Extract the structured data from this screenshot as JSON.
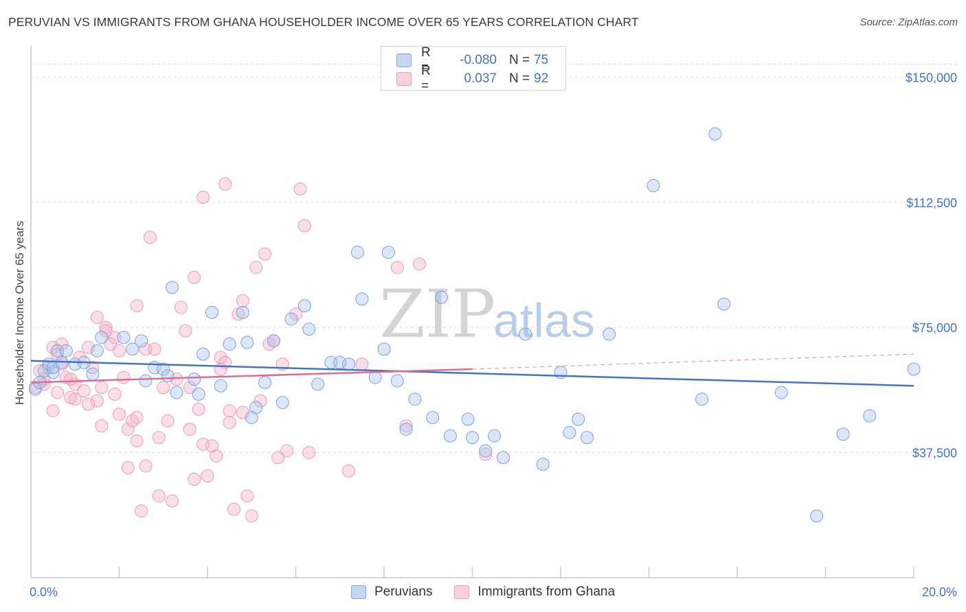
{
  "header": {
    "title": "PERUVIAN VS IMMIGRANTS FROM GHANA HOUSEHOLDER INCOME OVER 65 YEARS CORRELATION CHART",
    "source": "Source: ZipAtlas.com"
  },
  "watermark": {
    "zip": "ZIP",
    "atlas": "atlas"
  },
  "legend": {
    "rows": [
      {
        "r_label": "R =",
        "r_value": "-0.080",
        "n_label": "N =",
        "n_value": "75",
        "color": "#a9c6f0"
      },
      {
        "r_label": "R =",
        "r_value": "0.037",
        "n_label": "N =",
        "n_value": "92",
        "color": "#f5b8cc"
      }
    ]
  },
  "bottom_legend": [
    {
      "label": "Peruvians",
      "color": "#a9c6f0"
    },
    {
      "label": "Immigrants from Ghana",
      "color": "#f5b8cc"
    }
  ],
  "chart_data": {
    "type": "scatter",
    "title": "PERUVIAN VS IMMIGRANTS FROM GHANA HOUSEHOLDER INCOME OVER 65 YEARS CORRELATION CHART",
    "xlabel": "",
    "ylabel": "Householder Income Over 65 years",
    "xlim": [
      0,
      20
    ],
    "ylim": [
      0,
      157500
    ],
    "x_tick_labels": [
      "0.0%",
      "20.0%"
    ],
    "y_ticks": [
      37500,
      75000,
      112500,
      150000
    ],
    "y_tick_labels": [
      "$37,500",
      "$75,000",
      "$112,500",
      "$150,000"
    ],
    "grid": true,
    "legend_position": "top-center",
    "colors": {
      "peruvians": "#3f74c9",
      "ghana": "#e06b93"
    },
    "series": [
      {
        "name": "Peruvians",
        "trend": {
          "x0": 0,
          "y0": 65000,
          "x1": 20,
          "y1": 57500
        },
        "points": [
          [
            0.1,
            56500
          ],
          [
            0.2,
            58500
          ],
          [
            0.3,
            62000
          ],
          [
            0.4,
            64000
          ],
          [
            0.5,
            61500
          ],
          [
            0.5,
            63000
          ],
          [
            0.6,
            68000
          ],
          [
            0.7,
            64500
          ],
          [
            0.8,
            68000
          ],
          [
            1.0,
            64000
          ],
          [
            1.2,
            64500
          ],
          [
            1.4,
            61000
          ],
          [
            1.5,
            68000
          ],
          [
            1.6,
            72000
          ],
          [
            2.1,
            72000
          ],
          [
            2.3,
            68500
          ],
          [
            2.5,
            71000
          ],
          [
            2.6,
            59000
          ],
          [
            2.8,
            63000
          ],
          [
            3.0,
            62500
          ],
          [
            3.1,
            60500
          ],
          [
            3.2,
            87000
          ],
          [
            3.3,
            55500
          ],
          [
            3.7,
            59500
          ],
          [
            3.8,
            55000
          ],
          [
            3.9,
            67000
          ],
          [
            4.1,
            79500
          ],
          [
            4.3,
            57500
          ],
          [
            4.5,
            70000
          ],
          [
            4.8,
            79500
          ],
          [
            4.9,
            70500
          ],
          [
            5.0,
            48000
          ],
          [
            5.1,
            51000
          ],
          [
            5.3,
            58500
          ],
          [
            5.5,
            71000
          ],
          [
            5.7,
            52500
          ],
          [
            5.9,
            77500
          ],
          [
            6.2,
            81500
          ],
          [
            6.3,
            74500
          ],
          [
            6.5,
            58000
          ],
          [
            6.8,
            64500
          ],
          [
            7.0,
            64500
          ],
          [
            7.2,
            64000
          ],
          [
            7.4,
            97500
          ],
          [
            7.5,
            83500
          ],
          [
            7.8,
            60000
          ],
          [
            8.0,
            68500
          ],
          [
            8.1,
            97500
          ],
          [
            8.3,
            59000
          ],
          [
            8.7,
            53500
          ],
          [
            9.1,
            48000
          ],
          [
            9.3,
            84000
          ],
          [
            9.5,
            42500
          ],
          [
            9.9,
            47500
          ],
          [
            10.0,
            42000
          ],
          [
            10.3,
            38000
          ],
          [
            10.5,
            42500
          ],
          [
            10.7,
            36000
          ],
          [
            11.2,
            73000
          ],
          [
            11.6,
            34000
          ],
          [
            12.0,
            61500
          ],
          [
            12.2,
            43500
          ],
          [
            12.4,
            47500
          ],
          [
            12.6,
            42000
          ],
          [
            13.1,
            73000
          ],
          [
            14.1,
            117500
          ],
          [
            15.2,
            53500
          ],
          [
            15.5,
            133000
          ],
          [
            15.7,
            82000
          ],
          [
            17.0,
            55500
          ],
          [
            17.8,
            18500
          ],
          [
            18.4,
            43000
          ],
          [
            19.0,
            48500
          ],
          [
            20.0,
            62500
          ],
          [
            8.5,
            44500
          ]
        ]
      },
      {
        "name": "Immigrants from Ghana",
        "trend": {
          "x0": 0,
          "y0": 58500,
          "x1": 10,
          "y1": 62500,
          "dash_to_x": 20,
          "dash_to_y": 67000
        },
        "points": [
          [
            0.1,
            57000
          ],
          [
            0.2,
            62000
          ],
          [
            0.3,
            58000
          ],
          [
            0.4,
            63000
          ],
          [
            0.5,
            69000
          ],
          [
            0.5,
            50000
          ],
          [
            0.6,
            67000
          ],
          [
            0.7,
            70000
          ],
          [
            0.7,
            64000
          ],
          [
            0.8,
            60000
          ],
          [
            0.9,
            54000
          ],
          [
            1.0,
            58000
          ],
          [
            1.1,
            66000
          ],
          [
            1.2,
            56000
          ],
          [
            1.3,
            69000
          ],
          [
            1.4,
            63000
          ],
          [
            1.5,
            78000
          ],
          [
            1.5,
            53000
          ],
          [
            1.6,
            57000
          ],
          [
            1.6,
            45500
          ],
          [
            1.7,
            75000
          ],
          [
            1.7,
            74000
          ],
          [
            1.8,
            70000
          ],
          [
            1.9,
            72000
          ],
          [
            1.9,
            55000
          ],
          [
            2.0,
            49000
          ],
          [
            2.0,
            68000
          ],
          [
            2.1,
            60000
          ],
          [
            2.2,
            44500
          ],
          [
            2.2,
            33000
          ],
          [
            2.3,
            47000
          ],
          [
            2.4,
            81500
          ],
          [
            2.4,
            48000
          ],
          [
            2.4,
            41000
          ],
          [
            2.5,
            20000
          ],
          [
            2.6,
            33500
          ],
          [
            2.7,
            102000
          ],
          [
            2.8,
            68500
          ],
          [
            2.9,
            42000
          ],
          [
            2.9,
            24500
          ],
          [
            3.0,
            57000
          ],
          [
            3.1,
            47000
          ],
          [
            3.2,
            23000
          ],
          [
            3.3,
            59500
          ],
          [
            3.4,
            81000
          ],
          [
            3.5,
            74000
          ],
          [
            3.6,
            44500
          ],
          [
            3.7,
            90000
          ],
          [
            3.7,
            29500
          ],
          [
            3.8,
            50500
          ],
          [
            3.9,
            114000
          ],
          [
            3.9,
            40000
          ],
          [
            4.0,
            30500
          ],
          [
            4.1,
            39500
          ],
          [
            4.2,
            36500
          ],
          [
            4.3,
            66000
          ],
          [
            4.3,
            62500
          ],
          [
            4.4,
            118000
          ],
          [
            4.5,
            46500
          ],
          [
            4.5,
            50000
          ],
          [
            4.6,
            20500
          ],
          [
            4.7,
            79000
          ],
          [
            4.8,
            83000
          ],
          [
            4.8,
            49500
          ],
          [
            4.9,
            24500
          ],
          [
            5.0,
            18500
          ],
          [
            5.1,
            93000
          ],
          [
            5.2,
            53000
          ],
          [
            5.3,
            97000
          ],
          [
            5.4,
            70000
          ],
          [
            5.5,
            71000
          ],
          [
            5.6,
            36000
          ],
          [
            5.7,
            64000
          ],
          [
            5.8,
            38000
          ],
          [
            6.0,
            79000
          ],
          [
            6.1,
            116500
          ],
          [
            6.2,
            105500
          ],
          [
            6.3,
            37500
          ],
          [
            7.2,
            32000
          ],
          [
            7.5,
            64000
          ],
          [
            8.3,
            93000
          ],
          [
            8.5,
            45500
          ],
          [
            8.8,
            94000
          ],
          [
            10.3,
            37000
          ],
          [
            0.3,
            59500
          ],
          [
            0.6,
            55500
          ],
          [
            1.0,
            53500
          ],
          [
            1.3,
            52000
          ],
          [
            2.6,
            68500
          ],
          [
            3.6,
            57000
          ],
          [
            4.4,
            64500
          ],
          [
            0.9,
            59500
          ]
        ]
      }
    ]
  }
}
